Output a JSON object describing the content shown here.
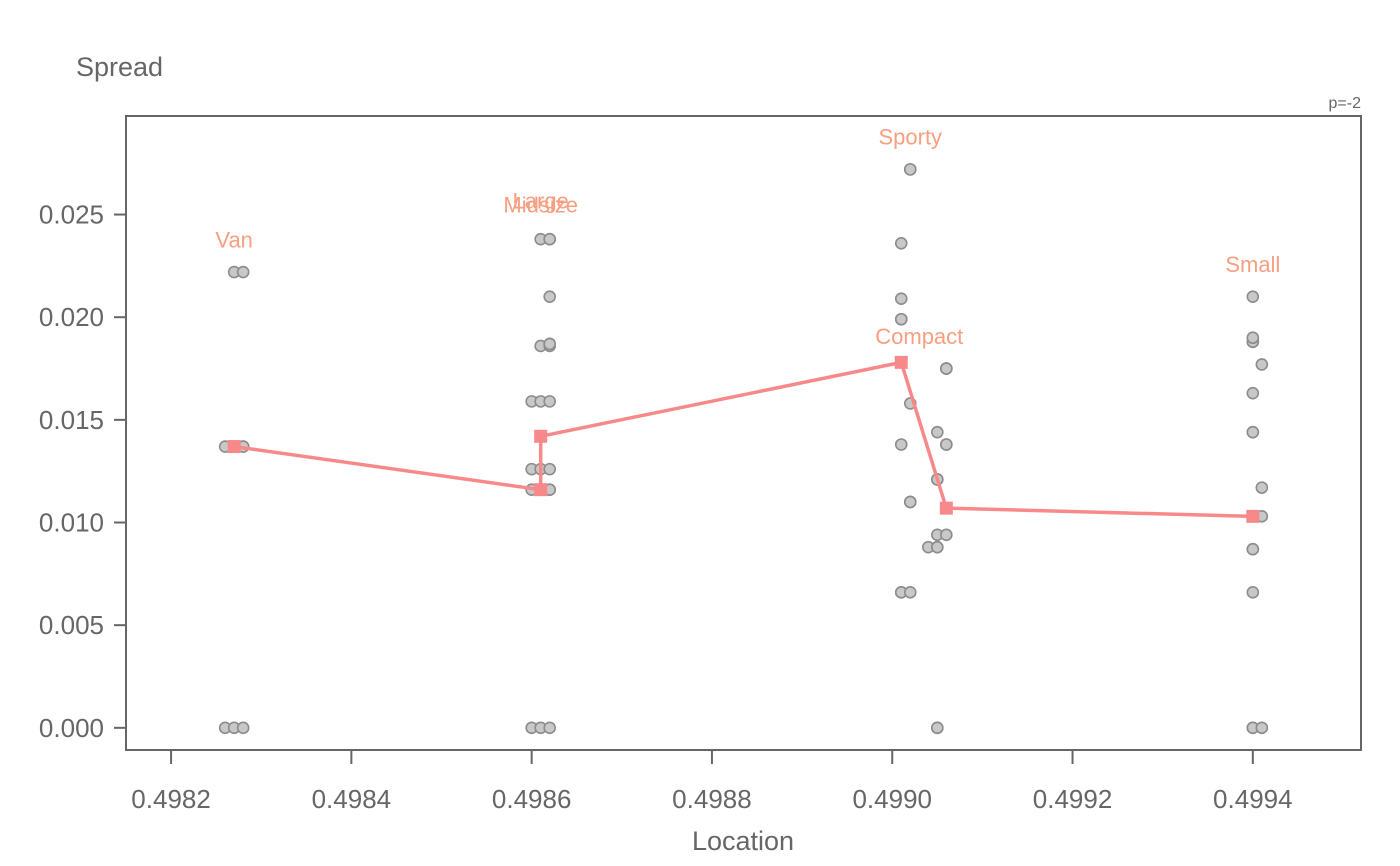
{
  "chart_data": {
    "type": "scatter",
    "title": "",
    "xlabel": "Location",
    "ylabel": "Spread",
    "corner_note": "p=-2",
    "xlim": [
      0.49815,
      0.49952
    ],
    "ylim": [
      -0.00108,
      0.0298
    ],
    "x_ticks": [
      0.4982,
      0.4984,
      0.4986,
      0.4988,
      0.499,
      0.4992,
      0.4994
    ],
    "x_tick_labels": [
      "0.4982",
      "0.4984",
      "0.4986",
      "0.4988",
      "0.4990",
      "0.4992",
      "0.4994"
    ],
    "y_ticks": [
      0.0,
      0.005,
      0.01,
      0.015,
      0.02,
      0.025
    ],
    "y_tick_labels": [
      "0.000",
      "0.005",
      "0.010",
      "0.015",
      "0.020",
      "0.025"
    ],
    "grid": false,
    "colors": {
      "points_fill": "#c8c8c8",
      "points_stroke": "#8c8c8c",
      "line": "#f8898a",
      "labels": "#f79f80",
      "axis": "#666666"
    },
    "points": [
      {
        "x": 0.49827,
        "y": 0.0222
      },
      {
        "x": 0.49828,
        "y": 0.0222
      },
      {
        "x": 0.49826,
        "y": 0.0137
      },
      {
        "x": 0.49827,
        "y": 0.0137
      },
      {
        "x": 0.49828,
        "y": 0.0137
      },
      {
        "x": 0.49828,
        "y": 0.0137
      },
      {
        "x": 0.49826,
        "y": 0.0
      },
      {
        "x": 0.49827,
        "y": 0.0
      },
      {
        "x": 0.49828,
        "y": 0.0
      },
      {
        "x": 0.49861,
        "y": 0.0238
      },
      {
        "x": 0.49862,
        "y": 0.0238
      },
      {
        "x": 0.49862,
        "y": 0.0238
      },
      {
        "x": 0.49862,
        "y": 0.021
      },
      {
        "x": 0.49861,
        "y": 0.0186
      },
      {
        "x": 0.49862,
        "y": 0.0186
      },
      {
        "x": 0.49862,
        "y": 0.0187
      },
      {
        "x": 0.49862,
        "y": 0.0187
      },
      {
        "x": 0.4986,
        "y": 0.0159
      },
      {
        "x": 0.49861,
        "y": 0.0159
      },
      {
        "x": 0.49862,
        "y": 0.0159
      },
      {
        "x": 0.4986,
        "y": 0.0126
      },
      {
        "x": 0.49861,
        "y": 0.0126
      },
      {
        "x": 0.49862,
        "y": 0.0126
      },
      {
        "x": 0.4986,
        "y": 0.0116
      },
      {
        "x": 0.49861,
        "y": 0.0116
      },
      {
        "x": 0.49862,
        "y": 0.0116
      },
      {
        "x": 0.49862,
        "y": 0.0116
      },
      {
        "x": 0.4986,
        "y": 0.0
      },
      {
        "x": 0.49861,
        "y": 0.0
      },
      {
        "x": 0.49862,
        "y": 0.0
      },
      {
        "x": 0.49902,
        "y": 0.0272
      },
      {
        "x": 0.49902,
        "y": 0.0272
      },
      {
        "x": 0.49901,
        "y": 0.0236
      },
      {
        "x": 0.49901,
        "y": 0.0209
      },
      {
        "x": 0.49901,
        "y": 0.0199
      },
      {
        "x": 0.49901,
        "y": 0.0199
      },
      {
        "x": 0.49902,
        "y": 0.0158
      },
      {
        "x": 0.49901,
        "y": 0.0138
      },
      {
        "x": 0.49902,
        "y": 0.011
      },
      {
        "x": 0.49902,
        "y": 0.011
      },
      {
        "x": 0.49901,
        "y": 0.0066
      },
      {
        "x": 0.49901,
        "y": 0.0066
      },
      {
        "x": 0.49902,
        "y": 0.0066
      },
      {
        "x": 0.49906,
        "y": 0.0175
      },
      {
        "x": 0.49906,
        "y": 0.0175
      },
      {
        "x": 0.49906,
        "y": 0.0175
      },
      {
        "x": 0.49905,
        "y": 0.0144
      },
      {
        "x": 0.49906,
        "y": 0.0138
      },
      {
        "x": 0.49906,
        "y": 0.0138
      },
      {
        "x": 0.49905,
        "y": 0.0121
      },
      {
        "x": 0.49905,
        "y": 0.0121
      },
      {
        "x": 0.49905,
        "y": 0.0094
      },
      {
        "x": 0.49906,
        "y": 0.0094
      },
      {
        "x": 0.49904,
        "y": 0.0088
      },
      {
        "x": 0.49905,
        "y": 0.0088
      },
      {
        "x": 0.49905,
        "y": 0.0088
      },
      {
        "x": 0.49905,
        "y": 0.0
      },
      {
        "x": 0.49905,
        "y": 0.0
      },
      {
        "x": 0.4994,
        "y": 0.021
      },
      {
        "x": 0.4994,
        "y": 0.0188
      },
      {
        "x": 0.4994,
        "y": 0.0188
      },
      {
        "x": 0.4994,
        "y": 0.019
      },
      {
        "x": 0.49941,
        "y": 0.0177
      },
      {
        "x": 0.4994,
        "y": 0.0163
      },
      {
        "x": 0.4994,
        "y": 0.0144
      },
      {
        "x": 0.4994,
        "y": 0.0144
      },
      {
        "x": 0.49941,
        "y": 0.0117
      },
      {
        "x": 0.49941,
        "y": 0.0103
      },
      {
        "x": 0.4994,
        "y": 0.0087
      },
      {
        "x": 0.4994,
        "y": 0.0087
      },
      {
        "x": 0.4994,
        "y": 0.0066
      },
      {
        "x": 0.4994,
        "y": 0.0
      },
      {
        "x": 0.4994,
        "y": 0.0
      },
      {
        "x": 0.49941,
        "y": 0.0
      }
    ],
    "line_points": [
      {
        "x": 0.49827,
        "y": 0.0137
      },
      {
        "x": 0.49861,
        "y": 0.0116
      },
      {
        "x": 0.49861,
        "y": 0.0142
      },
      {
        "x": 0.49901,
        "y": 0.0178
      },
      {
        "x": 0.49906,
        "y": 0.0107
      },
      {
        "x": 0.4994,
        "y": 0.0103
      }
    ],
    "group_labels": [
      {
        "text": "Van",
        "x": 0.49827,
        "y": 0.0234
      },
      {
        "text": "Large",
        "x": 0.49861,
        "y": 0.0253
      },
      {
        "text": "Midsize",
        "x": 0.49861,
        "y": 0.0251
      },
      {
        "text": "Sporty",
        "x": 0.49902,
        "y": 0.0284
      },
      {
        "text": "Compact",
        "x": 0.49903,
        "y": 0.0187
      },
      {
        "text": "Small",
        "x": 0.4994,
        "y": 0.0222
      }
    ]
  }
}
